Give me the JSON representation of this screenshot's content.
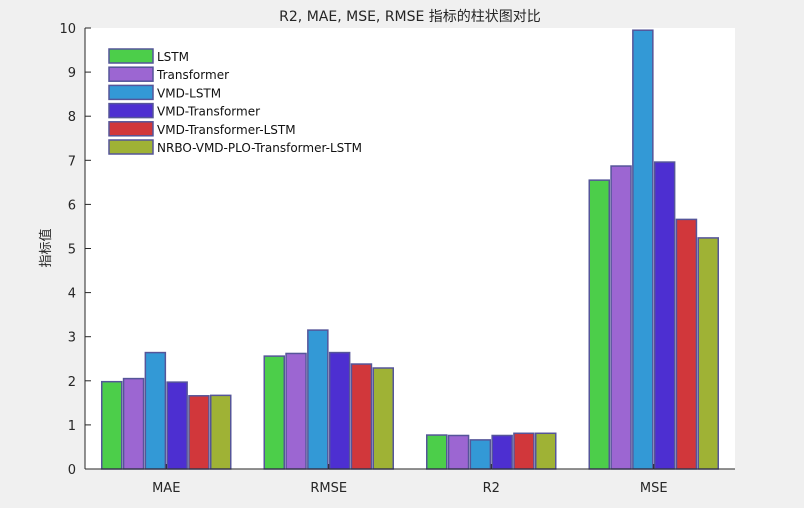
{
  "chart_data": {
    "type": "bar",
    "title": "R2, MAE, MSE, RMSE 指标的柱状图对比",
    "xlabel": "",
    "ylabel": "指标值",
    "ylim": [
      0,
      10
    ],
    "yticks": [
      "0",
      "1",
      "2",
      "3",
      "4",
      "5",
      "6",
      "7",
      "8",
      "9",
      "10"
    ],
    "categories": [
      "MAE",
      "RMSE",
      "R2",
      "MSE"
    ],
    "grid": false,
    "legend_position": "top-left",
    "series": [
      {
        "name": "LSTM",
        "color": "#4cce4a",
        "values": [
          1.98,
          2.56,
          0.77,
          6.55
        ]
      },
      {
        "name": "Transformer",
        "color": "#9c66d2",
        "values": [
          2.05,
          2.62,
          0.76,
          6.87
        ]
      },
      {
        "name": "VMD-LSTM",
        "color": "#3399d6",
        "values": [
          2.64,
          3.15,
          0.66,
          9.95
        ]
      },
      {
        "name": "VMD-Transformer",
        "color": "#4d2fd1",
        "values": [
          1.97,
          2.64,
          0.76,
          6.96
        ]
      },
      {
        "name": "VMD-Transformer-LSTM",
        "color": "#d1373b",
        "values": [
          1.66,
          2.38,
          0.81,
          5.66
        ]
      },
      {
        "name": "NRBO-VMD-PLO-Transformer-LSTM",
        "color": "#9fb235",
        "values": [
          1.67,
          2.29,
          0.81,
          5.24
        ]
      }
    ]
  }
}
